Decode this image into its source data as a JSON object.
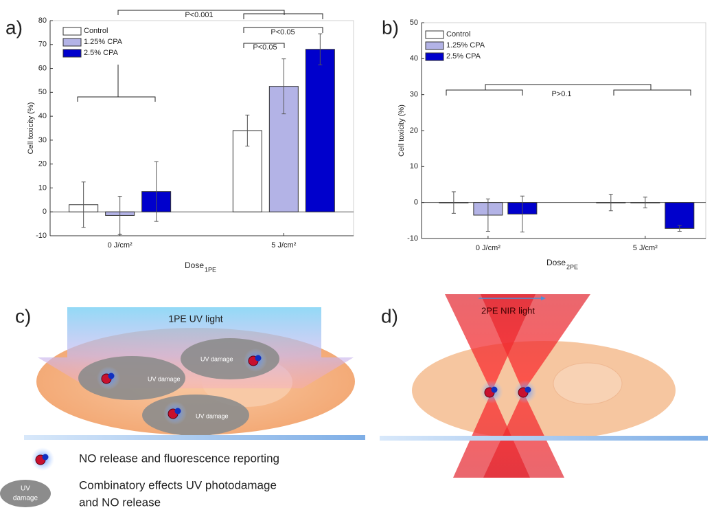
{
  "chart_data": [
    {
      "type": "bar",
      "categories": [
        "0 J/cm²",
        "5 J/cm²"
      ],
      "xlabel": "Dose",
      "xlabel_sub": "1PE",
      "ylabel": "Cell toxicity (%)",
      "series": [
        {
          "name": "Control",
          "color": "#ffffff",
          "values": [
            3,
            34
          ],
          "errors": [
            9.5,
            6.5
          ]
        },
        {
          "name": "1.25% CPA",
          "color": "#b3b3e6",
          "values": [
            -1.5,
            52.5
          ],
          "errors": [
            8,
            11.5
          ]
        },
        {
          "name": "2.5% CPA",
          "color": "#0000cc",
          "values": [
            8.5,
            68
          ],
          "errors": [
            12.5,
            6.5
          ]
        }
      ],
      "ylim": [
        -10,
        80
      ],
      "yticks": [
        -10,
        0,
        10,
        20,
        30,
        40,
        50,
        60,
        70,
        80
      ],
      "legend": "upper left",
      "annotations": [
        "P<0.001",
        "P<0.05",
        "P<0.05"
      ]
    },
    {
      "type": "bar",
      "categories": [
        "0 J/cm²",
        "5 J/cm²"
      ],
      "xlabel": "Dose",
      "xlabel_sub": "2PE",
      "ylabel": "Cell toxicity (%)",
      "series": [
        {
          "name": "Control",
          "color": "#ffffff",
          "values": [
            0,
            0
          ],
          "errors": [
            3,
            2.3
          ]
        },
        {
          "name": "1.25% CPA",
          "color": "#b3b3e6",
          "values": [
            -3.5,
            0
          ],
          "errors": [
            4.5,
            1.5
          ]
        },
        {
          "name": "2.5% CPA",
          "color": "#0000cc",
          "values": [
            -3.2,
            -7.2
          ],
          "errors": [
            5,
            0.8
          ]
        }
      ],
      "ylim": [
        -10,
        50
      ],
      "yticks": [
        -10,
        0,
        10,
        20,
        30,
        40,
        50
      ],
      "legend": "upper left",
      "annotations": [
        "P>0.1"
      ]
    }
  ],
  "figure": {
    "labels": [
      "a)",
      "b)",
      "c)",
      "d)"
    ],
    "panel_c": {
      "light": "1PE UV light",
      "damage_labels": [
        "UV damage",
        "UV damage",
        "UV damage"
      ]
    },
    "panel_d": {
      "light": "2PE NIR light"
    },
    "legend": {
      "no_release": "NO release and fluorescence reporting",
      "damage_icon": [
        "UV",
        "damage"
      ],
      "combined": [
        "Combinatory effects UV photodamage",
        "and NO release"
      ]
    }
  }
}
